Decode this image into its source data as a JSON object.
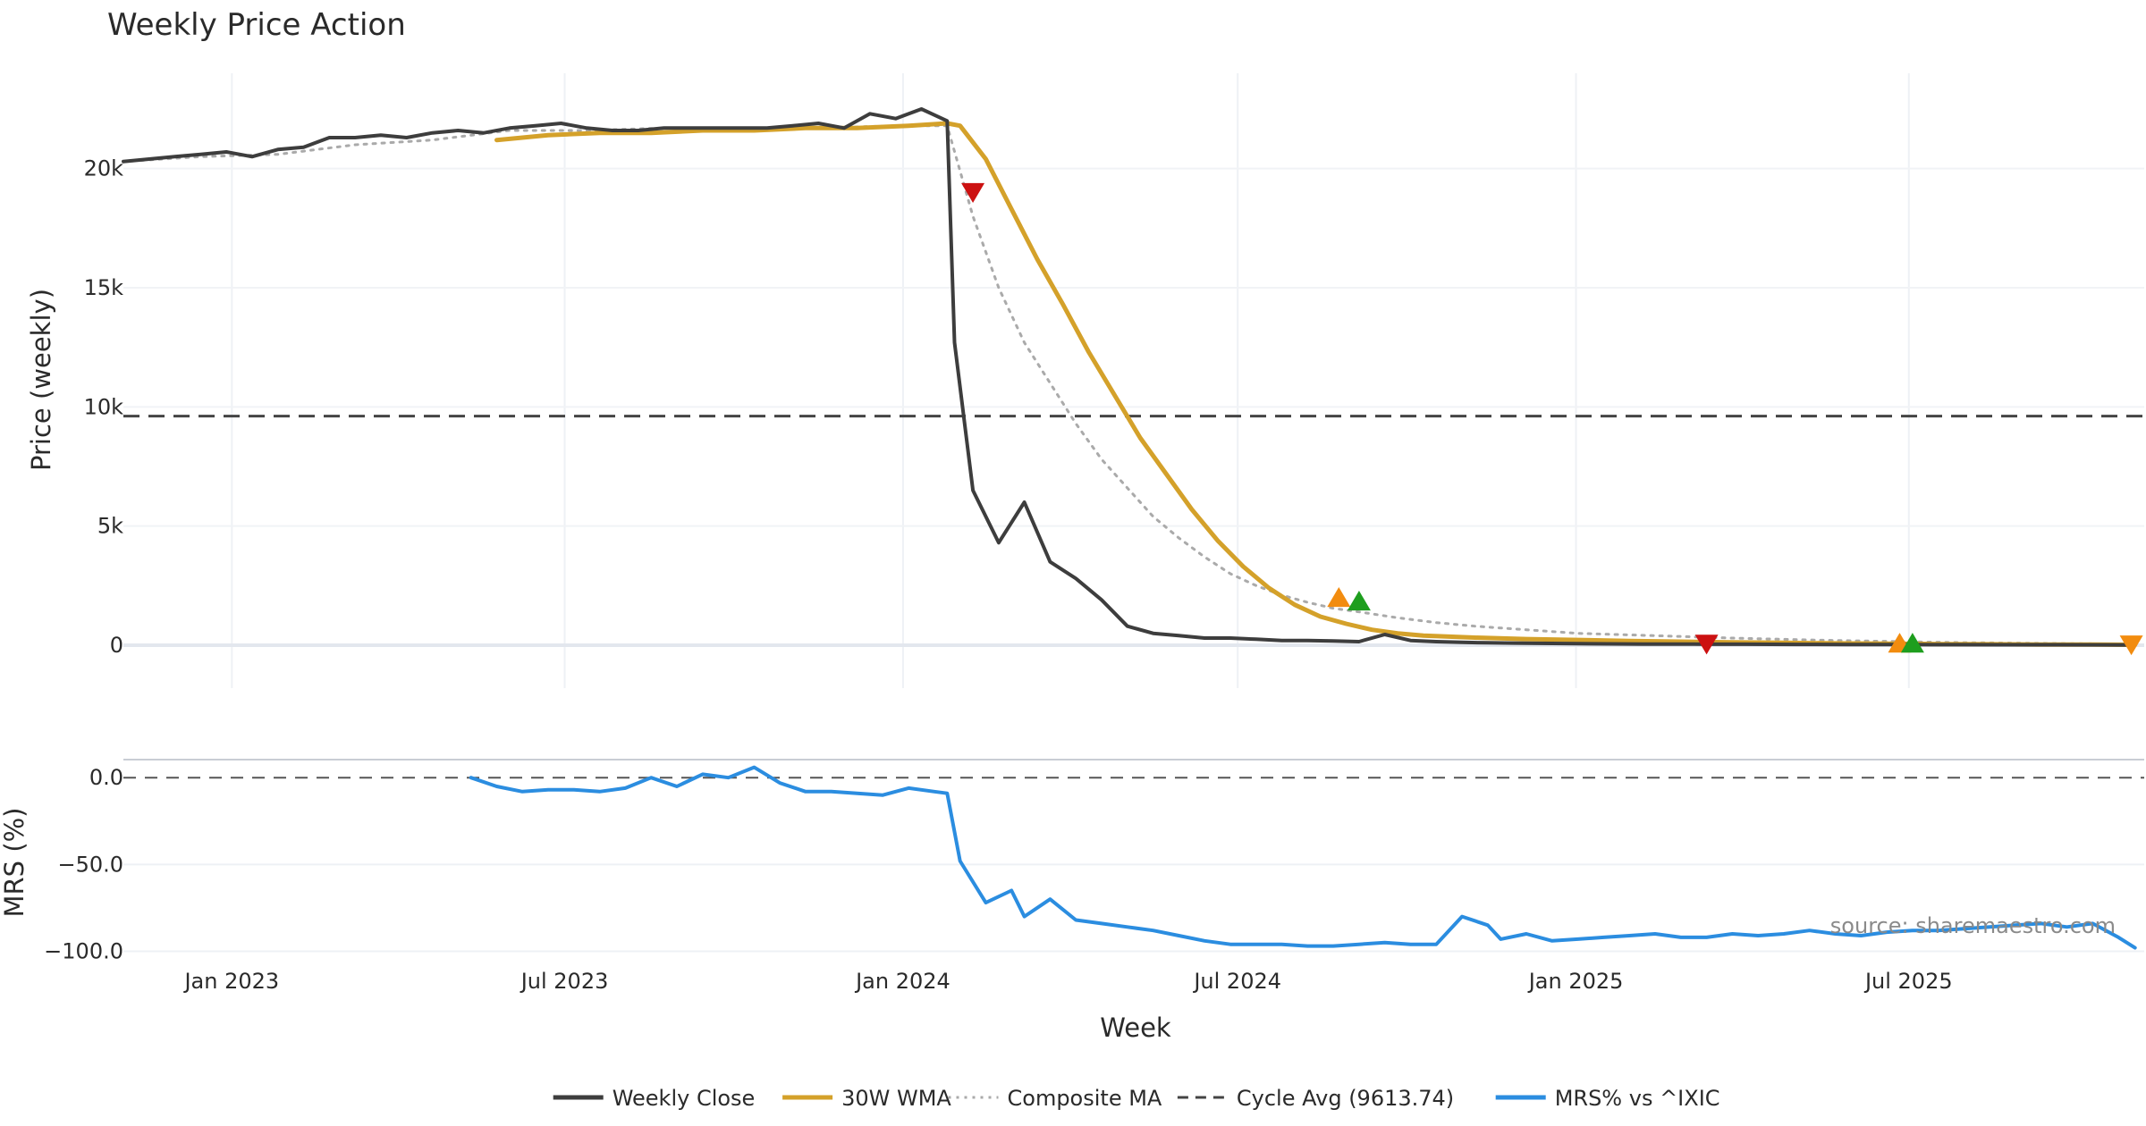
{
  "chart_data": {
    "type": "line",
    "title": "Weekly Price Action",
    "xlabel": "Week",
    "source": "source: sharemaestro.com",
    "x_range": [
      "2022-11-03",
      "2025-11-06"
    ],
    "x_ticks": [
      {
        "date": "2023-01-01",
        "label": "Jan 2023"
      },
      {
        "date": "2023-07-01",
        "label": "Jul 2023"
      },
      {
        "date": "2024-01-01",
        "label": "Jan 2024"
      },
      {
        "date": "2024-07-01",
        "label": "Jul 2024"
      },
      {
        "date": "2025-01-01",
        "label": "Jan 2025"
      },
      {
        "date": "2025-07-01",
        "label": "Jul 2025"
      }
    ],
    "price_panel": {
      "ylabel": "Price (weekly)",
      "ylim": [
        -1800,
        24000
      ],
      "y_ticks": [
        {
          "value": 0,
          "label": "0"
        },
        {
          "value": 5000,
          "label": "5k"
        },
        {
          "value": 10000,
          "label": "10k"
        },
        {
          "value": 15000,
          "label": "15k"
        },
        {
          "value": 20000,
          "label": "20k"
        }
      ],
      "cycle_avg": 9613.74,
      "series": [
        {
          "name": "Weekly Close",
          "color": "#3d3d3d",
          "style": "solid",
          "x": [
            "2022-11-03",
            "2022-11-17",
            "2022-12-01",
            "2022-12-15",
            "2022-12-29",
            "2023-01-12",
            "2023-01-26",
            "2023-02-09",
            "2023-02-23",
            "2023-03-09",
            "2023-03-23",
            "2023-04-06",
            "2023-04-20",
            "2023-05-04",
            "2023-05-18",
            "2023-06-01",
            "2023-06-15",
            "2023-06-29",
            "2023-07-13",
            "2023-07-27",
            "2023-08-10",
            "2023-08-24",
            "2023-09-07",
            "2023-09-21",
            "2023-10-05",
            "2023-10-19",
            "2023-11-02",
            "2023-11-16",
            "2023-11-30",
            "2023-12-14",
            "2023-12-28",
            "2024-01-11",
            "2024-01-25",
            "2024-01-29",
            "2024-02-08",
            "2024-02-22",
            "2024-03-07",
            "2024-03-21",
            "2024-04-04",
            "2024-04-18",
            "2024-05-02",
            "2024-05-16",
            "2024-05-30",
            "2024-06-13",
            "2024-06-27",
            "2024-07-11",
            "2024-07-25",
            "2024-08-08",
            "2024-08-22",
            "2024-09-05",
            "2024-09-19",
            "2024-10-03",
            "2024-10-17",
            "2024-10-31",
            "2024-11-14",
            "2024-11-28",
            "2024-12-12",
            "2024-12-26",
            "2025-01-09",
            "2025-02-06",
            "2025-03-06",
            "2025-04-03",
            "2025-05-01",
            "2025-05-29",
            "2025-06-26",
            "2025-07-24",
            "2025-08-21",
            "2025-09-18",
            "2025-10-16",
            "2025-10-30"
          ],
          "y": [
            20300,
            20400,
            20500,
            20600,
            20700,
            20500,
            20800,
            20900,
            21300,
            21300,
            21400,
            21300,
            21500,
            21600,
            21500,
            21700,
            21800,
            21900,
            21700,
            21600,
            21600,
            21700,
            21700,
            21700,
            21700,
            21700,
            21800,
            21900,
            21700,
            22300,
            22100,
            22500,
            22000,
            12700,
            6500,
            4300,
            6000,
            3500,
            2800,
            1900,
            800,
            500,
            400,
            300,
            300,
            250,
            200,
            200,
            180,
            150,
            450,
            200,
            150,
            120,
            100,
            90,
            80,
            70,
            60,
            50,
            45,
            40,
            35,
            30,
            25,
            22,
            20,
            18,
            15,
            10
          ]
        },
        {
          "name": "30W WMA",
          "color": "#d4a12a",
          "style": "solid",
          "x": [
            "2023-05-25",
            "2023-06-22",
            "2023-07-20",
            "2023-08-17",
            "2023-09-14",
            "2023-10-12",
            "2023-11-09",
            "2023-12-07",
            "2024-01-04",
            "2024-01-25",
            "2024-02-01",
            "2024-02-15",
            "2024-02-29",
            "2024-03-14",
            "2024-03-28",
            "2024-04-11",
            "2024-04-25",
            "2024-05-09",
            "2024-05-23",
            "2024-06-06",
            "2024-06-20",
            "2024-07-04",
            "2024-07-18",
            "2024-08-01",
            "2024-08-15",
            "2024-08-29",
            "2024-09-12",
            "2024-09-26",
            "2024-10-10",
            "2024-11-07",
            "2024-12-05",
            "2025-01-02",
            "2025-01-30",
            "2025-02-27",
            "2025-03-27",
            "2025-04-24",
            "2025-05-22",
            "2025-06-19",
            "2025-07-17",
            "2025-08-14",
            "2025-09-11",
            "2025-10-09",
            "2025-11-01"
          ],
          "y": [
            21200,
            21400,
            21500,
            21500,
            21600,
            21600,
            21700,
            21700,
            21800,
            21900,
            21800,
            20400,
            18300,
            16200,
            14300,
            12300,
            10500,
            8700,
            7200,
            5700,
            4400,
            3300,
            2400,
            1700,
            1200,
            900,
            650,
            500,
            400,
            320,
            260,
            220,
            180,
            150,
            120,
            100,
            80,
            65,
            50,
            40,
            30,
            25,
            20
          ]
        },
        {
          "name": "Composite MA",
          "color": "#aaaaaa",
          "style": "dotted",
          "x": [
            "2022-11-03",
            "2022-12-15",
            "2023-01-26",
            "2023-03-09",
            "2023-04-20",
            "2023-06-01",
            "2023-07-13",
            "2023-08-24",
            "2023-10-05",
            "2023-11-16",
            "2023-12-28",
            "2024-01-25",
            "2024-02-08",
            "2024-02-22",
            "2024-03-07",
            "2024-03-21",
            "2024-04-04",
            "2024-04-18",
            "2024-05-02",
            "2024-05-16",
            "2024-05-30",
            "2024-06-13",
            "2024-06-27",
            "2024-07-11",
            "2024-07-25",
            "2024-08-08",
            "2024-08-22",
            "2024-09-05",
            "2024-09-26",
            "2024-10-17",
            "2024-11-07",
            "2024-12-05",
            "2025-01-02",
            "2025-02-13",
            "2025-03-27",
            "2025-05-08",
            "2025-06-19",
            "2025-07-31",
            "2025-09-11",
            "2025-10-23",
            "2025-11-01"
          ],
          "y": [
            20300,
            20500,
            20600,
            21000,
            21200,
            21600,
            21600,
            21700,
            21700,
            21700,
            21800,
            21800,
            18000,
            15000,
            12700,
            11000,
            9300,
            7800,
            6600,
            5400,
            4500,
            3700,
            3000,
            2500,
            2100,
            1800,
            1550,
            1400,
            1150,
            950,
            800,
            650,
            500,
            400,
            300,
            220,
            160,
            110,
            80,
            50,
            30
          ]
        },
        {
          "name": "Cycle Avg (9613.74)",
          "color": "#444444",
          "style": "dashed"
        }
      ],
      "markers": [
        {
          "date": "2024-02-08",
          "value": 19000,
          "shape": "triangle-down",
          "color": "#cc1111"
        },
        {
          "date": "2024-08-25",
          "value": 2000,
          "shape": "triangle-up",
          "color": "#f28c0f"
        },
        {
          "date": "2024-09-05",
          "value": 1850,
          "shape": "triangle-up",
          "color": "#1e9e1e"
        },
        {
          "date": "2025-03-13",
          "value": 50,
          "shape": "triangle-down",
          "color": "#cc1111"
        },
        {
          "date": "2025-06-26",
          "value": 80,
          "shape": "triangle-up",
          "color": "#f28c0f"
        },
        {
          "date": "2025-07-03",
          "value": 80,
          "shape": "triangle-up",
          "color": "#1e9e1e"
        },
        {
          "date": "2025-10-30",
          "value": 20,
          "shape": "triangle-down",
          "color": "#f28c0f"
        }
      ]
    },
    "mrs_panel": {
      "ylabel": "MRS (%)",
      "ylim": [
        -108,
        13
      ],
      "y_ticks": [
        {
          "value": 0,
          "label": "0.0"
        },
        {
          "value": -50,
          "label": "−50.0"
        },
        {
          "value": -100,
          "label": "−100.0"
        }
      ],
      "series": [
        {
          "name": "MRS% vs ^IXIC",
          "color": "#2b8de0",
          "style": "solid",
          "x": [
            "2023-05-11",
            "2023-05-25",
            "2023-06-08",
            "2023-06-22",
            "2023-07-06",
            "2023-07-20",
            "2023-08-03",
            "2023-08-17",
            "2023-08-31",
            "2023-09-14",
            "2023-09-28",
            "2023-10-12",
            "2023-10-26",
            "2023-11-09",
            "2023-11-23",
            "2023-12-07",
            "2023-12-21",
            "2024-01-04",
            "2024-01-18",
            "2024-01-25",
            "2024-02-01",
            "2024-02-15",
            "2024-02-29",
            "2024-03-07",
            "2024-03-21",
            "2024-04-04",
            "2024-04-18",
            "2024-05-02",
            "2024-05-16",
            "2024-05-30",
            "2024-06-13",
            "2024-06-27",
            "2024-07-11",
            "2024-07-25",
            "2024-08-08",
            "2024-08-22",
            "2024-09-05",
            "2024-09-19",
            "2024-10-03",
            "2024-10-17",
            "2024-10-31",
            "2024-11-14",
            "2024-11-21",
            "2024-12-05",
            "2024-12-19",
            "2025-01-02",
            "2025-01-16",
            "2025-01-30",
            "2025-02-13",
            "2025-02-27",
            "2025-03-13",
            "2025-03-27",
            "2025-04-10",
            "2025-04-24",
            "2025-05-08",
            "2025-05-22",
            "2025-06-05",
            "2025-06-19",
            "2025-07-03",
            "2025-07-17",
            "2025-07-31",
            "2025-08-14",
            "2025-08-28",
            "2025-09-11",
            "2025-09-25",
            "2025-10-09",
            "2025-10-23",
            "2025-11-01"
          ],
          "y": [
            0,
            -5,
            -8,
            -7,
            -7,
            -8,
            -6,
            0,
            -5,
            2,
            0,
            6,
            -3,
            -8,
            -8,
            -9,
            -10,
            -6,
            -8,
            -9,
            -48,
            -72,
            -65,
            -80,
            -70,
            -82,
            -84,
            -86,
            -88,
            -91,
            -94,
            -96,
            -96,
            -96,
            -97,
            -97,
            -96,
            -95,
            -96,
            -96,
            -80,
            -85,
            -93,
            -90,
            -94,
            -93,
            -92,
            -91,
            -90,
            -92,
            -92,
            -90,
            -91,
            -90,
            -88,
            -90,
            -91,
            -89,
            -88,
            -88,
            -87,
            -86,
            -85,
            -84,
            -86,
            -84,
            -92,
            -98
          ]
        }
      ]
    },
    "legend": {
      "placement": "bottom-center",
      "items": [
        {
          "label": "Weekly Close",
          "color": "#3d3d3d",
          "style": "solid"
        },
        {
          "label": "30W WMA",
          "color": "#d4a12a",
          "style": "solid"
        },
        {
          "label": "Composite MA",
          "color": "#aaaaaa",
          "style": "dotted"
        },
        {
          "label": "Cycle Avg (9613.74)",
          "color": "#444444",
          "style": "dashed"
        },
        {
          "label": "MRS% vs ^IXIC",
          "color": "#2b8de0",
          "style": "solid"
        }
      ]
    }
  }
}
